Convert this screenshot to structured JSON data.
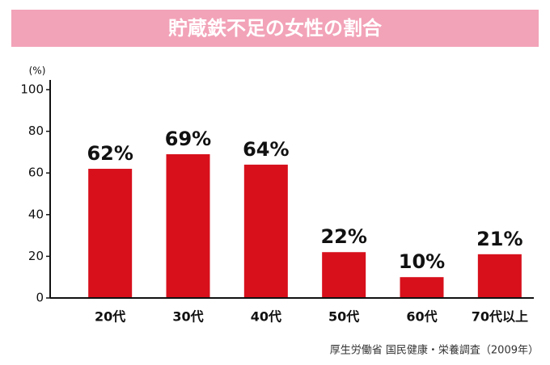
{
  "chart_data": {
    "type": "bar",
    "title": "貯蔵鉄不足の女性の割合",
    "ylabel": "(%)",
    "categories": [
      "20代",
      "30代",
      "40代",
      "50代",
      "60代",
      "70代以上"
    ],
    "values": [
      62,
      69,
      64,
      22,
      10,
      21
    ],
    "value_labels": [
      "62%",
      "69%",
      "64%",
      "22%",
      "10%",
      "21%"
    ],
    "color": "#d7101c",
    "ylim": [
      0,
      100
    ],
    "yticks": [
      0,
      20,
      40,
      60,
      80,
      100
    ],
    "source": "厚生労働省 国民健康・栄養調査（2009年）"
  }
}
